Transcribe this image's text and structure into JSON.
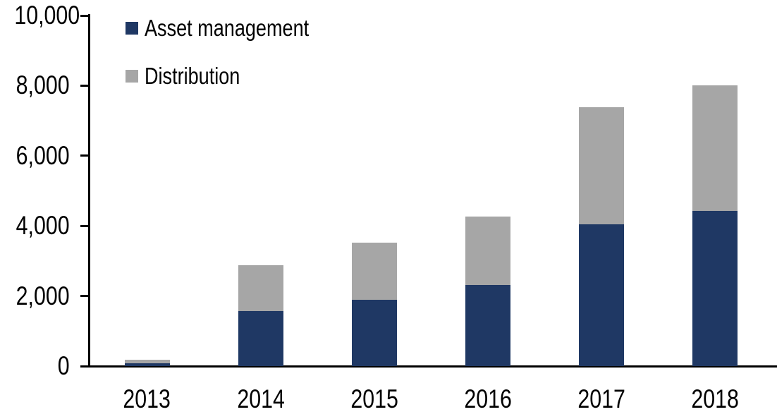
{
  "chart_data": {
    "type": "bar",
    "stacked": true,
    "title": "",
    "categories": [
      "2013",
      "2014",
      "2015",
      "2016",
      "2017",
      "2018"
    ],
    "series": [
      {
        "name": "Asset management",
        "color": "#1F3864",
        "values": [
          80,
          1560,
          1890,
          2310,
          4050,
          4420
        ]
      },
      {
        "name": "Distribution",
        "color": "#A6A6A6",
        "values": [
          100,
          1310,
          1630,
          1960,
          3340,
          3580
        ]
      }
    ],
    "stack_totals": [
      180,
      2870,
      3520,
      4270,
      7390,
      8000
    ],
    "xlabel": "",
    "ylabel": "",
    "ylim": [
      0,
      10000
    ],
    "y_ticks": [
      {
        "label": "0",
        "value": 0
      },
      {
        "label": "2,000",
        "value": 2000
      },
      {
        "label": "4,000",
        "value": 4000
      },
      {
        "label": "6,000",
        "value": 6000
      },
      {
        "label": "8,000",
        "value": 8000
      },
      {
        "label": "10,000",
        "value": 10000
      }
    ],
    "grid": false,
    "legend_position": "top-left-inside",
    "axis_color": "#000000",
    "text_color": "#000000",
    "background_color": "#FFFFFF"
  }
}
